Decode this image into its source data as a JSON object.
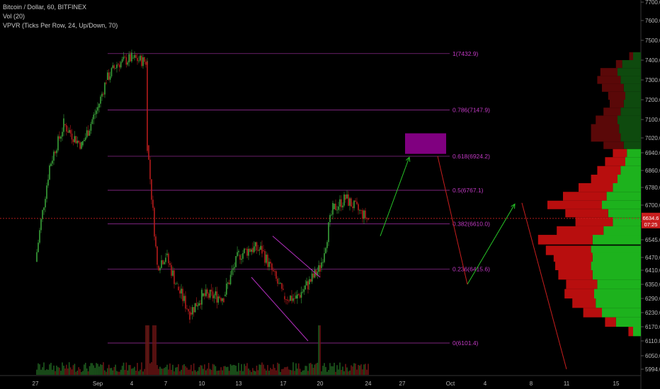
{
  "legend": {
    "line1": "Bitcoin / Dollar, 60, BITFINEX",
    "line2": "Vol (20)",
    "line3": "VPVR (Ticks Per Row, 24, Up/Down, 70)"
  },
  "colors": {
    "background": "#000000",
    "up_candle": "#3aa23a",
    "down_candle": "#b51c1c",
    "fib": "#c23ac4",
    "price_line": "#c81e1e",
    "price_tag": "#c81e1e",
    "arrow_up": "#27c227",
    "arrow_down": "#c81e1e",
    "box": "#800080",
    "vpvr_up": "#1db21d",
    "vpvr_down": "#b80e0e",
    "vpvr_up_dark": "#0e4a0e",
    "vpvr_down_dark": "#5a0808"
  },
  "price_tag": {
    "value": "6634.6",
    "timer": "07:25"
  },
  "chart_data": {
    "type": "candlestick",
    "title": "Bitcoin / Dollar, 60, BITFINEX",
    "y_ticks": [
      "7700.0",
      "7600.0",
      "7500.0",
      "7400.0",
      "7300.0",
      "7200.0",
      "7100.0",
      "7020.0",
      "6940.0",
      "6860.0",
      "6780.0",
      "6700.0",
      "6620.0",
      "6545.0",
      "6470.0",
      "6410.0",
      "6350.0",
      "6290.0",
      "6230.0",
      "6170.0",
      "6110.0",
      "6050.0",
      "5994.0"
    ],
    "x_ticks": [
      "27",
      "Sep",
      "4",
      "7",
      "10",
      "13",
      "17",
      "20",
      "24",
      "27",
      "Oct",
      "4",
      "8",
      "11",
      "15"
    ],
    "fib_levels": [
      {
        "label": "1(7432.9)",
        "price": 7432.9
      },
      {
        "label": "0.786(7147.9)",
        "price": 7147.9
      },
      {
        "label": "0.618(6924.2)",
        "price": 6924.2
      },
      {
        "label": "0.5(6767.1)",
        "price": 6767.1
      },
      {
        "label": "0.382(6610.0)",
        "price": 6610.0
      },
      {
        "label": "0.236(6415.6)",
        "price": 6415.6
      },
      {
        "label": "0(6101.4)",
        "price": 6101.4
      }
    ],
    "current_price": 6634.6,
    "price_path": [
      [
        "27",
        6450
      ],
      [
        "28",
        6880
      ],
      [
        "29",
        7080
      ],
      [
        "31",
        6980
      ],
      [
        "Sep 1",
        7160
      ],
      [
        "Sep 2",
        7300
      ],
      [
        "Sep 3",
        7380
      ],
      [
        "Sep 4",
        7410
      ],
      [
        "Sep 5",
        7390
      ],
      [
        "Sep 5",
        6980
      ],
      [
        "Sep 6",
        6430
      ],
      [
        "Sep 7",
        6480
      ],
      [
        "Sep 8",
        6340
      ],
      [
        "Sep 9",
        6230
      ],
      [
        "Sep 10",
        6300
      ],
      [
        "Sep 12",
        6300
      ],
      [
        "Sep 13",
        6480
      ],
      [
        "Sep 14",
        6510
      ],
      [
        "Sep 15",
        6500
      ],
      [
        "Sep 17",
        6300
      ],
      [
        "Sep 18",
        6290
      ],
      [
        "Sep 19",
        6350
      ],
      [
        "Sep 20",
        6420
      ],
      [
        "Sep 21",
        6680
      ],
      [
        "Sep 22",
        6730
      ],
      [
        "Sep 24",
        6630
      ]
    ],
    "projection": {
      "box": {
        "from": "Sep 29",
        "to": "Oct 1",
        "low": 6935,
        "high": 7040
      },
      "arrows_up": [
        [
          "Sep 25",
          6560,
          "Sep 29",
          6920
        ],
        [
          "Oct 2",
          6350,
          "Oct 6",
          6705
        ]
      ],
      "arrows_down": [
        [
          "Sep 30",
          6925,
          "Oct 2",
          6350
        ],
        [
          "Oct 7",
          6710,
          "Oct 11",
          5994
        ]
      ],
      "pattern_lines": [
        [
          "Sep 14",
          6380,
          "Sep 19",
          6110
        ],
        [
          "Sep 16",
          6560,
          "Sep 20",
          6380
        ]
      ]
    },
    "volume_profile": {
      "rows": 24,
      "mode": "Up/Down",
      "value_area_pct": 70
    }
  }
}
